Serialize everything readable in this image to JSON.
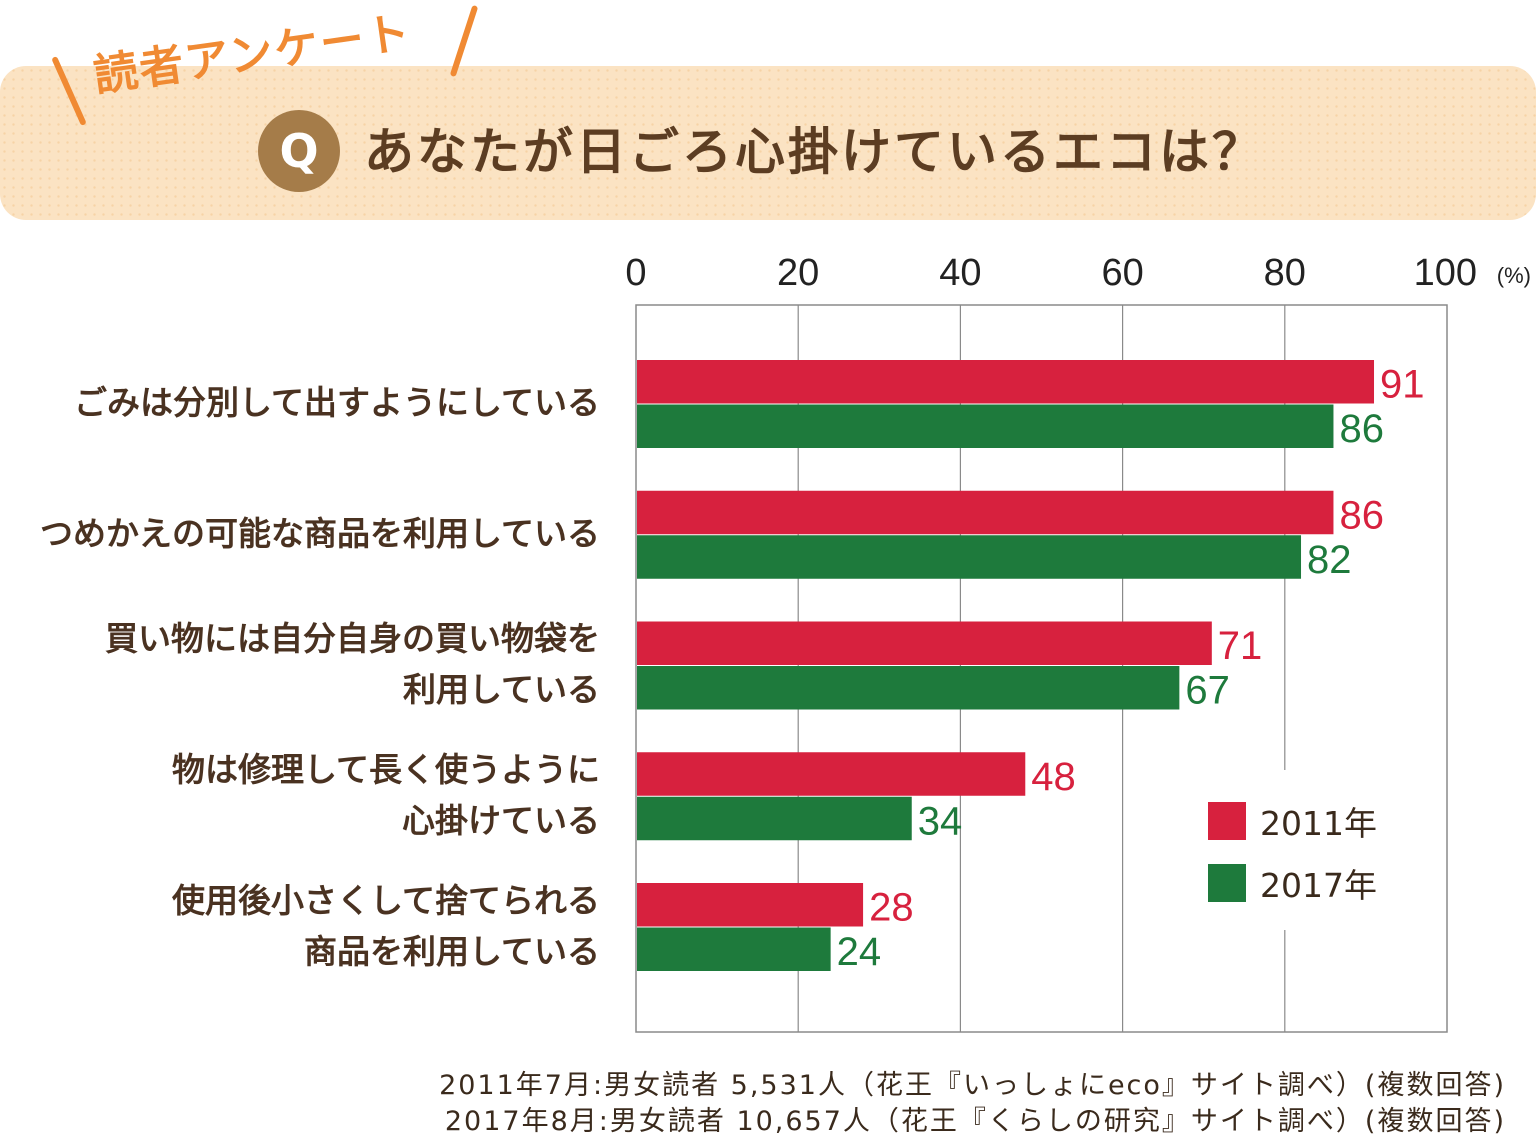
{
  "header": {
    "survey_label": "読者アンケート",
    "q_mark": "Q",
    "question": "あなたが日ごろ心掛けているエコは？"
  },
  "chart_data": {
    "type": "bar",
    "orientation": "horizontal",
    "categories": [
      [
        "ごみは分別して出すようにしている"
      ],
      [
        "つめかえの可能な商品を利用している"
      ],
      [
        "買い物には自分自身の買い物袋を",
        "利用している"
      ],
      [
        "物は修理して長く使うように",
        "心掛けている"
      ],
      [
        "使用後小さくして捨てられる",
        "商品を利用している"
      ]
    ],
    "series": [
      {
        "name": "2011年",
        "color": "#d7213e",
        "values": [
          91,
          86,
          71,
          48,
          28
        ]
      },
      {
        "name": "2017年",
        "color": "#1e7a3c",
        "values": [
          86,
          82,
          67,
          34,
          24
        ]
      }
    ],
    "xlim": [
      0,
      100
    ],
    "xticks": [
      "0",
      "20",
      "40",
      "60",
      "80",
      "100"
    ],
    "unit": "(%)",
    "grid": true,
    "legend": "bottom-right"
  },
  "footnotes": [
    "2011年7月:男女読者  5,531人（花王『いっしょにeco』サイト調べ）(複数回答)",
    "2017年8月:男女読者  10,657人（花王『くらしの研究』サイト調べ）(複数回答)"
  ]
}
